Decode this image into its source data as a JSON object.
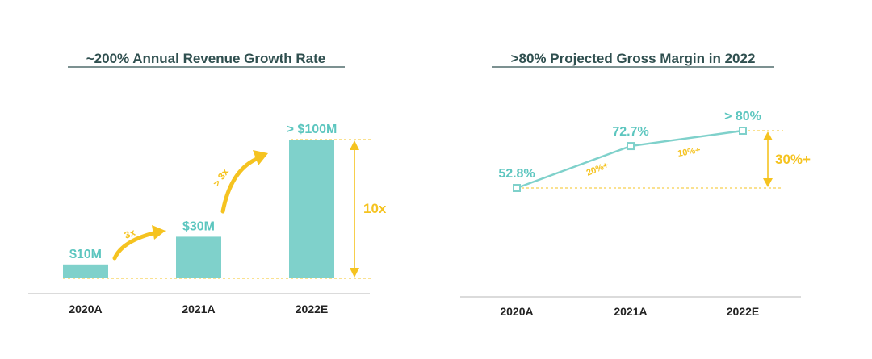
{
  "colors": {
    "teal": "#7fd1cb",
    "teal_text": "#5cc6bf",
    "gold": "#f5c320",
    "title": "#2f4f4f",
    "axis": "#cfcfcf",
    "tick": "#222222"
  },
  "chart_data": [
    {
      "type": "bar",
      "title": "~200% Annual Revenue Growth Rate",
      "categories": [
        "2020A",
        "2021A",
        "2022E"
      ],
      "values": [
        10,
        30,
        100
      ],
      "unit": "$M",
      "ylim": [
        0,
        100
      ],
      "grid": false,
      "data_labels": [
        "$10M",
        "$30M",
        "> $100M"
      ],
      "annotations": {
        "growth_1": "3x",
        "growth_2": "> 3x",
        "total": "10x"
      }
    },
    {
      "type": "line",
      "title": ">80% Projected Gross Margin in 2022",
      "categories": [
        "2020A",
        "2021A",
        "2022E"
      ],
      "values": [
        52.8,
        72.7,
        80
      ],
      "unit": "%",
      "ylim": [
        30,
        80
      ],
      "grid": false,
      "data_labels": [
        "52.8%",
        "72.7%",
        "> 80%"
      ],
      "annotations": {
        "seg_1": "20%+",
        "seg_2": "10%+",
        "total": "30%+"
      }
    }
  ]
}
